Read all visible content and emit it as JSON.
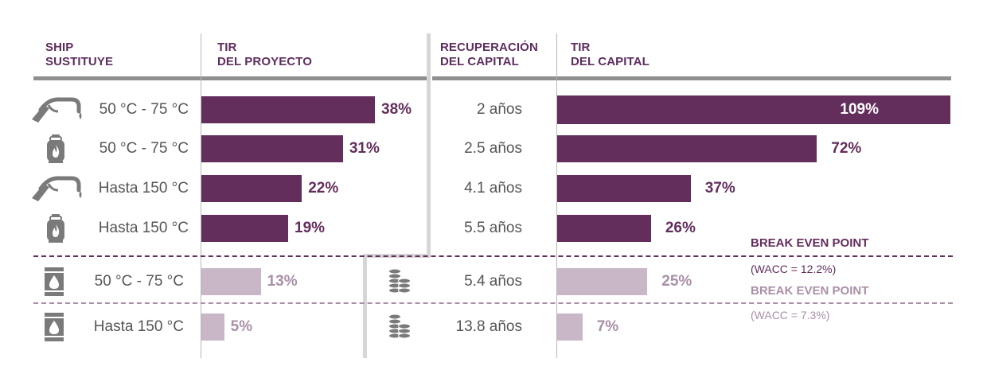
{
  "headers": {
    "ship": "SHIP\nSUSTITUYE",
    "tir_proyecto": "TIR\nDEL PROYECTO",
    "recuperacion": "RECUPERACIÓN\nDEL CAPITAL",
    "tir_capital": "TIR\nDEL CAPITAL"
  },
  "colors": {
    "primary": "#632d5c",
    "secondary": "#c9b7c8",
    "primary_label": "#5e2d5e",
    "secondary_label": "#a98fa7",
    "icon_gray": "#7a7a7a",
    "text_gray": "#555555"
  },
  "chart_data": {
    "type": "bar",
    "orientation": "horizontal",
    "rows": [
      {
        "icon": "fuel-nozzle-icon",
        "label": "50 °C - 75 °C",
        "tir_proyecto": 38,
        "tir_proyecto_label": "38%",
        "recuperacion": "2 años",
        "tir_capital": 109,
        "tir_capital_label": "109%",
        "tier": "primary",
        "payback_icon": ""
      },
      {
        "icon": "gas-cylinder-icon",
        "label": "50 °C - 75 °C",
        "tir_proyecto": 31,
        "tir_proyecto_label": "31%",
        "recuperacion": "2.5 años",
        "tir_capital": 72,
        "tir_capital_label": "72%",
        "tier": "primary",
        "payback_icon": ""
      },
      {
        "icon": "fuel-nozzle-icon",
        "label": "Hasta 150 °C",
        "tir_proyecto": 22,
        "tir_proyecto_label": "22%",
        "recuperacion": "4.1 años",
        "tir_capital": 37,
        "tir_capital_label": "37%",
        "tier": "primary",
        "payback_icon": ""
      },
      {
        "icon": "gas-cylinder-icon",
        "label": "Hasta 150 °C",
        "tir_proyecto": 19,
        "tir_proyecto_label": "19%",
        "recuperacion": "5.5 años",
        "tir_capital": 26,
        "tir_capital_label": "26%",
        "tier": "primary",
        "payback_icon": ""
      },
      {
        "icon": "oil-drop-icon",
        "label": "50 °C - 75 °C",
        "tir_proyecto": 13,
        "tir_proyecto_label": "13%",
        "recuperacion": "5.4 años",
        "tir_capital": 25,
        "tir_capital_label": "25%",
        "tier": "secondary",
        "payback_icon": "coin-stack-icon"
      },
      {
        "icon": "oil-drop-icon",
        "label": "Hasta 150 °C",
        "tir_proyecto": 5,
        "tir_proyecto_label": "5%",
        "recuperacion": "13.8 años",
        "tir_capital": 7,
        "tir_capital_label": "7%",
        "tier": "secondary",
        "payback_icon": "coin-stack-icon"
      }
    ],
    "break_even": [
      {
        "title": "BREAK EVEN POINT",
        "note": "(WACC = 12.2%)"
      },
      {
        "title": "BREAK EVEN POINT",
        "note": "(WACC = 7.3%)"
      }
    ]
  }
}
